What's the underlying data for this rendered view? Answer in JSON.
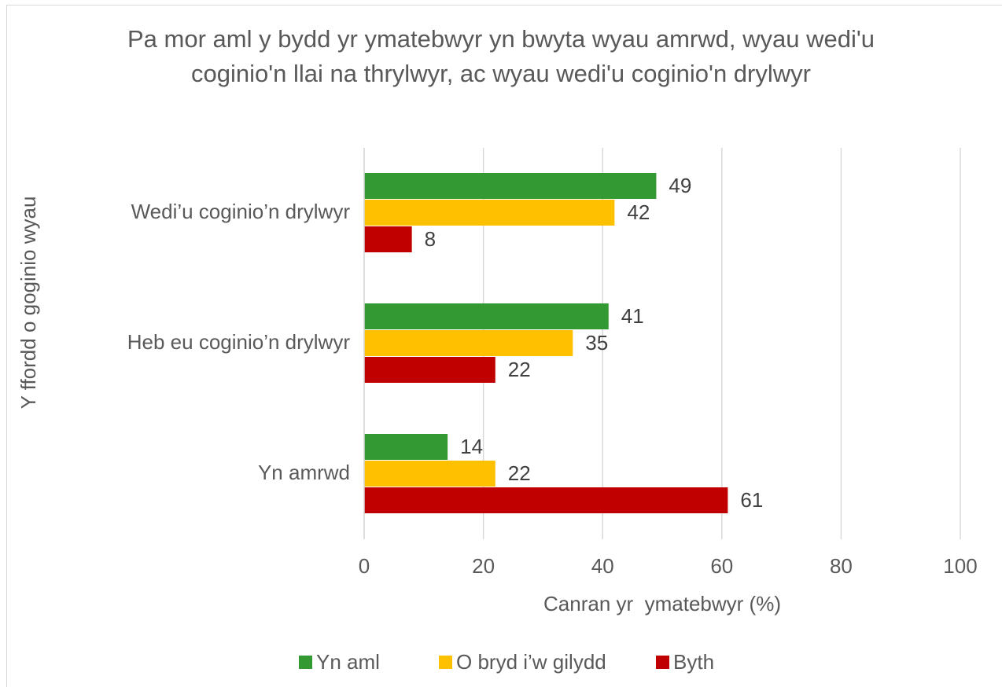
{
  "chart_data": {
    "type": "bar",
    "orientation": "horizontal",
    "title": "Pa mor aml y bydd yr ymatebwyr yn bwyta wyau amrwd, wyau wedi'u coginio'n llai na thrylwyr, ac wyau wedi'u coginio'n drylwyr",
    "x_label": "Canran yr  ymatebwyr (%)",
    "y_label": "Y ffordd o goginio wyau",
    "categories": [
      "Wedi’u coginio’n drylwyr",
      "Heb eu coginio’n drylwyr",
      "Yn amrwd"
    ],
    "series": [
      {
        "name": "Yn aml",
        "color": "#339933",
        "values": [
          49,
          41,
          14
        ]
      },
      {
        "name": "O bryd i’w gilydd",
        "color": "#ffc000",
        "values": [
          42,
          35,
          22
        ]
      },
      {
        "name": "Byth",
        "color": "#c00000",
        "values": [
          8,
          22,
          61
        ]
      }
    ],
    "xlim": [
      0,
      100
    ],
    "xticks": [
      0,
      20,
      40,
      60,
      80,
      100
    ],
    "grid": true,
    "legend": "bottom"
  }
}
